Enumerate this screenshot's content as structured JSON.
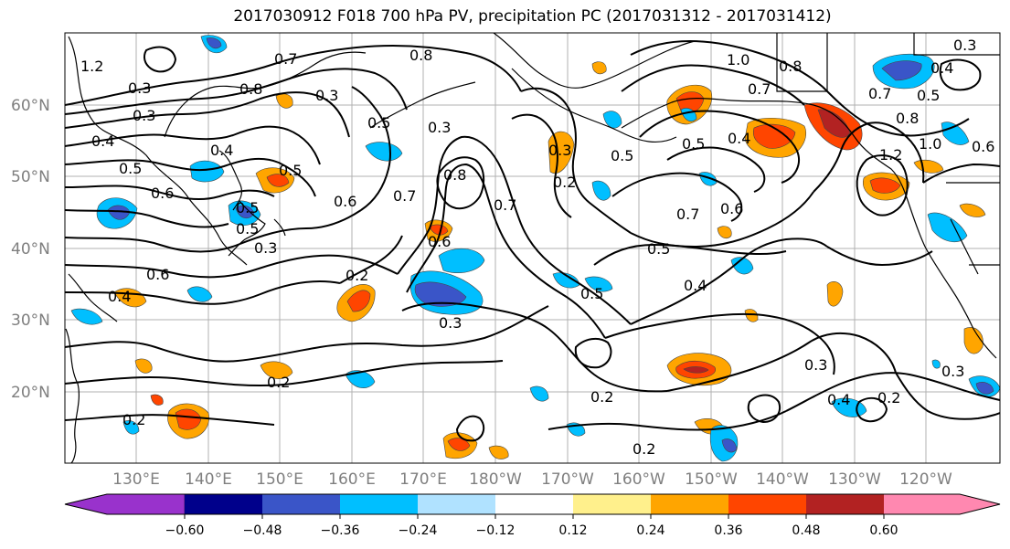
{
  "title": "2017030912 F018 700 hPa PV, precipitation PC (2017031312 - 2017031412)",
  "lat_labels": [
    "60°N",
    "50°N",
    "40°N",
    "30°N",
    "20°N"
  ],
  "lon_labels": [
    "130°E",
    "140°E",
    "150°E",
    "160°E",
    "170°E",
    "180°W",
    "170°W",
    "160°W",
    "150°W",
    "140°W",
    "130°W",
    "120°W"
  ],
  "colorbar": {
    "colors": [
      "#9932cc",
      "#00008b",
      "#3a55c8",
      "#00bfff",
      "#b0e2ff",
      "#ffffff",
      "#fff08c",
      "#ffa500",
      "#ff4500",
      "#b22222",
      "#ff88b0"
    ],
    "ticks": [
      "−0.60",
      "−0.48",
      "−0.36",
      "−0.24",
      "−0.12",
      "0.12",
      "0.24",
      "0.36",
      "0.48",
      "0.60"
    ]
  },
  "contour_labels": [
    "0.8",
    "0.7",
    "0.8",
    "1.2",
    "0.3",
    "0.3",
    "0.4",
    "0.5",
    "0.6",
    "0.5",
    "0.4",
    "0.5",
    "0.3",
    "0.8",
    "0.6",
    "0.7",
    "0.3",
    "0.2",
    "0.3",
    "0.5",
    "0.2",
    "0.3",
    "0.2",
    "0.5",
    "0.6",
    "0.7",
    "0.6",
    "0.5",
    "0.4",
    "1.0",
    "0.8",
    "0.7",
    "0.4",
    "0.5",
    "0.7",
    "1.2",
    "0.8",
    "1.0",
    "0.6",
    "0.4",
    "0.5",
    "0.3",
    "0.2",
    "0.2",
    "0.3",
    "0.4",
    "0.2",
    "0.3",
    "0.2",
    "0.4",
    "0.6",
    "0.5",
    "0.7",
    "0.5",
    "0.3"
  ]
}
